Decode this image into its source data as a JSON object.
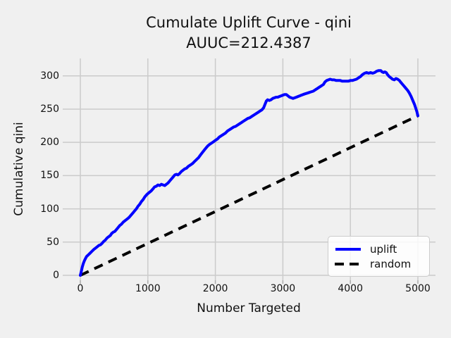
{
  "figure": {
    "title_line1": "Cumulate Uplift Curve - qini",
    "title_line2": "AUUC=212.4387",
    "xlabel": "Number Targeted",
    "ylabel": "Cumulative qini"
  },
  "legend": {
    "entries": [
      {
        "label": "uplift",
        "color": "#0000ff",
        "dashed": false
      },
      {
        "label": "random",
        "color": "#000000",
        "dashed": true
      }
    ]
  },
  "colors": {
    "background": "#f0f0f0",
    "grid": "#cbcbcb",
    "tick_mark": "#aaaaaa",
    "text": "#111111",
    "uplift_line": "#0000ff",
    "random_line": "#000000",
    "legend_background": "#fcfcfc",
    "legend_border": "#cccccc"
  },
  "chart_data": {
    "type": "line",
    "title": "Cumulate Uplift Curve - qini\nAUUC=212.4387",
    "xlabel": "Number Targeted",
    "ylabel": "Cumulative qini",
    "auuc": 212.4387,
    "grid": true,
    "legend_position": "lower right",
    "x_ticks": [
      0,
      1000,
      2000,
      3000,
      4000,
      5000
    ],
    "y_ticks": [
      0,
      50,
      100,
      150,
      200,
      250,
      300
    ],
    "xlim": [
      -261,
      5261
    ],
    "ylim": [
      -7.4,
      326.2
    ],
    "series": [
      {
        "name": "random",
        "color": "#000000",
        "style": "dashed",
        "linewidth": 4,
        "points": [
          [
            0,
            0
          ],
          [
            5000,
            240
          ]
        ]
      },
      {
        "name": "uplift",
        "color": "#0000ff",
        "style": "solid",
        "linewidth": 4,
        "points": [
          [
            0,
            0
          ],
          [
            15,
            6
          ],
          [
            30,
            13
          ],
          [
            45,
            18
          ],
          [
            60,
            22
          ],
          [
            75,
            25
          ],
          [
            90,
            28
          ],
          [
            110,
            30
          ],
          [
            130,
            32
          ],
          [
            150,
            34
          ],
          [
            170,
            36
          ],
          [
            200,
            39
          ],
          [
            225,
            41
          ],
          [
            250,
            43
          ],
          [
            275,
            45
          ],
          [
            300,
            46
          ],
          [
            320,
            48
          ],
          [
            345,
            51
          ],
          [
            370,
            53
          ],
          [
            395,
            56
          ],
          [
            420,
            58
          ],
          [
            445,
            60
          ],
          [
            465,
            63
          ],
          [
            490,
            65
          ],
          [
            510,
            66
          ],
          [
            535,
            69
          ],
          [
            560,
            72
          ],
          [
            585,
            75
          ],
          [
            610,
            77
          ],
          [
            635,
            80
          ],
          [
            660,
            82
          ],
          [
            685,
            84
          ],
          [
            710,
            86
          ],
          [
            730,
            88
          ],
          [
            755,
            91
          ],
          [
            780,
            94
          ],
          [
            805,
            97
          ],
          [
            830,
            100
          ],
          [
            855,
            104
          ],
          [
            880,
            107
          ],
          [
            905,
            111
          ],
          [
            930,
            114
          ],
          [
            955,
            118
          ],
          [
            980,
            121
          ],
          [
            1000,
            123
          ],
          [
            1025,
            125
          ],
          [
            1050,
            127
          ],
          [
            1075,
            130
          ],
          [
            1100,
            133
          ],
          [
            1125,
            134
          ],
          [
            1150,
            136
          ],
          [
            1175,
            135
          ],
          [
            1200,
            137
          ],
          [
            1225,
            136
          ],
          [
            1250,
            135
          ],
          [
            1275,
            137
          ],
          [
            1300,
            139
          ],
          [
            1325,
            142
          ],
          [
            1350,
            145
          ],
          [
            1375,
            148
          ],
          [
            1400,
            151
          ],
          [
            1425,
            152
          ],
          [
            1445,
            151
          ],
          [
            1470,
            153
          ],
          [
            1495,
            156
          ],
          [
            1520,
            158
          ],
          [
            1545,
            160
          ],
          [
            1570,
            161
          ],
          [
            1600,
            164
          ],
          [
            1630,
            166
          ],
          [
            1660,
            168
          ],
          [
            1690,
            171
          ],
          [
            1720,
            174
          ],
          [
            1750,
            177
          ],
          [
            1780,
            181
          ],
          [
            1810,
            185
          ],
          [
            1840,
            189
          ],
          [
            1865,
            192
          ],
          [
            1890,
            195
          ],
          [
            1915,
            197
          ],
          [
            1945,
            199
          ],
          [
            1975,
            201
          ],
          [
            2000,
            203
          ],
          [
            2030,
            205
          ],
          [
            2060,
            208
          ],
          [
            2090,
            210
          ],
          [
            2120,
            212
          ],
          [
            2150,
            214
          ],
          [
            2180,
            217
          ],
          [
            2210,
            219
          ],
          [
            2240,
            221
          ],
          [
            2270,
            223
          ],
          [
            2300,
            224
          ],
          [
            2330,
            226
          ],
          [
            2360,
            228
          ],
          [
            2390,
            230
          ],
          [
            2420,
            232
          ],
          [
            2450,
            234
          ],
          [
            2480,
            236
          ],
          [
            2510,
            237
          ],
          [
            2540,
            239
          ],
          [
            2570,
            241
          ],
          [
            2600,
            243
          ],
          [
            2630,
            245
          ],
          [
            2660,
            247
          ],
          [
            2690,
            249
          ],
          [
            2715,
            252
          ],
          [
            2735,
            257
          ],
          [
            2755,
            262
          ],
          [
            2775,
            264
          ],
          [
            2800,
            263
          ],
          [
            2825,
            264
          ],
          [
            2850,
            266
          ],
          [
            2875,
            267
          ],
          [
            2900,
            268
          ],
          [
            2925,
            268
          ],
          [
            2950,
            269
          ],
          [
            2975,
            270
          ],
          [
            3000,
            271
          ],
          [
            3025,
            272
          ],
          [
            3050,
            272
          ],
          [
            3075,
            270
          ],
          [
            3100,
            268
          ],
          [
            3125,
            267
          ],
          [
            3150,
            266
          ],
          [
            3175,
            267
          ],
          [
            3200,
            268
          ],
          [
            3225,
            269
          ],
          [
            3250,
            270
          ],
          [
            3275,
            271
          ],
          [
            3300,
            272
          ],
          [
            3330,
            273
          ],
          [
            3360,
            274
          ],
          [
            3390,
            275
          ],
          [
            3420,
            276
          ],
          [
            3450,
            277
          ],
          [
            3480,
            279
          ],
          [
            3510,
            281
          ],
          [
            3540,
            283
          ],
          [
            3570,
            285
          ],
          [
            3600,
            287
          ],
          [
            3625,
            291
          ],
          [
            3650,
            293
          ],
          [
            3675,
            294
          ],
          [
            3700,
            295
          ],
          [
            3730,
            294
          ],
          [
            3760,
            294
          ],
          [
            3790,
            293
          ],
          [
            3820,
            293
          ],
          [
            3850,
            293
          ],
          [
            3880,
            292
          ],
          [
            3910,
            292
          ],
          [
            3940,
            292
          ],
          [
            3970,
            292
          ],
          [
            4000,
            293
          ],
          [
            4030,
            293
          ],
          [
            4060,
            294
          ],
          [
            4090,
            295
          ],
          [
            4120,
            297
          ],
          [
            4150,
            299
          ],
          [
            4180,
            302
          ],
          [
            4210,
            304
          ],
          [
            4240,
            305
          ],
          [
            4270,
            304
          ],
          [
            4300,
            305
          ],
          [
            4330,
            304
          ],
          [
            4360,
            305
          ],
          [
            4390,
            307
          ],
          [
            4420,
            308
          ],
          [
            4450,
            308
          ],
          [
            4470,
            306
          ],
          [
            4490,
            305
          ],
          [
            4510,
            306
          ],
          [
            4530,
            305
          ],
          [
            4550,
            302
          ],
          [
            4575,
            299
          ],
          [
            4600,
            297
          ],
          [
            4625,
            295
          ],
          [
            4650,
            294
          ],
          [
            4675,
            296
          ],
          [
            4700,
            295
          ],
          [
            4725,
            293
          ],
          [
            4750,
            290
          ],
          [
            4775,
            287
          ],
          [
            4800,
            284
          ],
          [
            4825,
            281
          ],
          [
            4850,
            278
          ],
          [
            4875,
            274
          ],
          [
            4900,
            269
          ],
          [
            4925,
            263
          ],
          [
            4950,
            257
          ],
          [
            4970,
            251
          ],
          [
            4985,
            246
          ],
          [
            5000,
            240
          ]
        ]
      }
    ]
  }
}
